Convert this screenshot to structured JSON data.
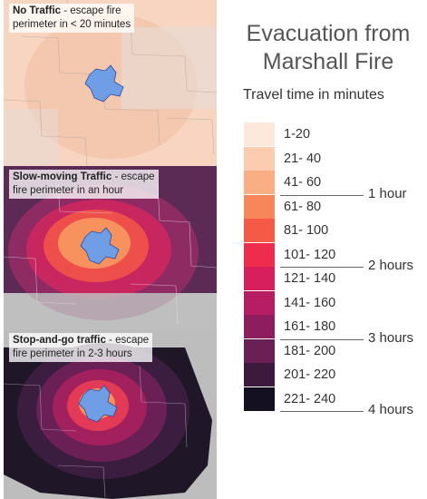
{
  "title_line1": "Evacuation from",
  "title_line2": "Marshall Fire",
  "legend_title": "Travel time in minutes",
  "panels": [
    {
      "bold": "No Traffic",
      "rest": " - escape fire",
      "line2": "perimeter in < 20 minutes"
    },
    {
      "bold": "Slow-moving Traffic",
      "rest": " - escape",
      "line2": "fire perimeter in an hour"
    },
    {
      "bold": "Stop-and-go traffic",
      "rest": " - escape",
      "line2": "fire perimeter in 2-3 hours"
    }
  ],
  "legend": [
    {
      "label": "1-20",
      "color": "#fde9dc"
    },
    {
      "label": "21- 40",
      "color": "#fbccaf"
    },
    {
      "label": "41- 60",
      "color": "#f9ae84"
    },
    {
      "label": "61- 80",
      "color": "#f7875a"
    },
    {
      "label": "81- 100",
      "color": "#f45a45"
    },
    {
      "label": "101- 120",
      "color": "#ef2c4b"
    },
    {
      "label": "121- 140",
      "color": "#d81f5e"
    },
    {
      "label": "141- 160",
      "color": "#b61d63"
    },
    {
      "label": "161- 180",
      "color": "#8e1d5e"
    },
    {
      "label": "181- 200",
      "color": "#6a1f55"
    },
    {
      "label": "201- 220",
      "color": "#3d1a3d"
    },
    {
      "label": "221- 240",
      "color": "#141022"
    }
  ],
  "hour_marks": [
    "1 hour",
    "2 hours",
    "3 hours",
    "4 hours"
  ],
  "fire_color": "#6f9ee6"
}
